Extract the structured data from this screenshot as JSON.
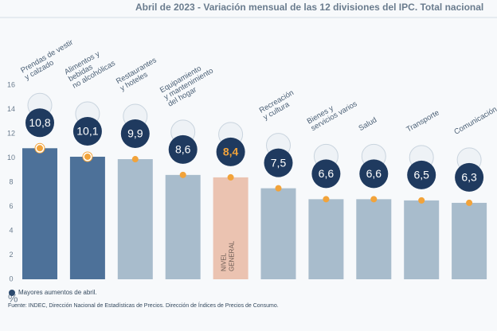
{
  "chart_data": {
    "type": "bar",
    "title": "Abril de 2023 - Variación mensual de las 12 divisiones del IPC. Total nacional",
    "categories": [
      [
        "Prendas de vestir",
        "y calzado"
      ],
      [
        "Alimentos y",
        "bebidas",
        "no alcohólicas"
      ],
      [
        "Restaurantes",
        "y hoteles"
      ],
      [
        "Equipamiento",
        "y mantenimiento",
        "del hogar"
      ],
      [
        "NIVEL",
        "GENERAL"
      ],
      [
        "Recreación",
        "y cultura"
      ],
      [
        "Bienes y",
        "servicios varios"
      ],
      [
        "Salud"
      ],
      [
        "Transporte"
      ],
      [
        "Comunicación"
      ]
    ],
    "values": [
      10.8,
      10.1,
      9.9,
      8.6,
      8.4,
      7.5,
      6.6,
      6.6,
      6.5,
      6.3
    ],
    "value_labels": [
      "10,8",
      "10,1",
      "9,9",
      "8,6",
      "8,4",
      "7,5",
      "6,6",
      "6,6",
      "6,5",
      "6,3"
    ],
    "colors": [
      "#4d7199",
      "#4d7199",
      "#a8bccc",
      "#a8bccc",
      "#ebc3b1",
      "#a8bccc",
      "#a8bccc",
      "#a8bccc",
      "#a8bccc",
      "#a8bccc"
    ],
    "ylim": [
      0,
      16
    ],
    "yticks": [
      0,
      2,
      4,
      6,
      8,
      10,
      12,
      14,
      16
    ],
    "y_label": "%",
    "legend": "Mayores aumentos de abril.",
    "source": "Fuente: INDEC, Dirección Nacional de Estadísticas de Precios. Dirección de Índices de Precios de Consumo."
  }
}
